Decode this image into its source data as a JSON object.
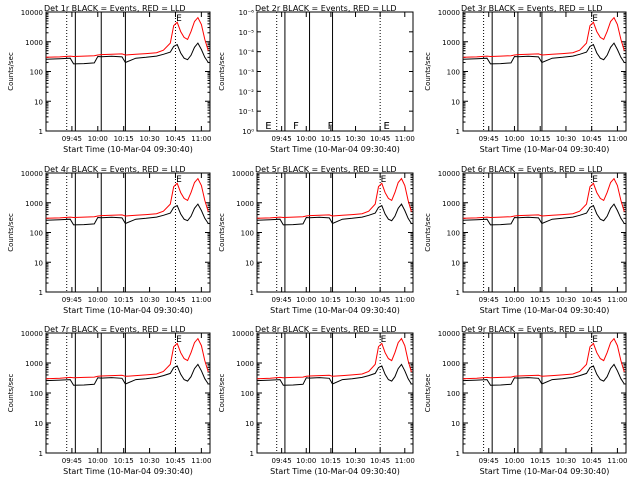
{
  "figure": {
    "xlabel": "Start Time (10-Mar-04 09:30:40)",
    "ylabel": "Counts/sec",
    "x_ticks": [
      "09:45",
      "10:00",
      "10:15",
      "10:30",
      "10:45",
      "11:00"
    ],
    "y_ticks": [
      "1",
      "10",
      "100",
      "1000",
      "10000"
    ],
    "y_ticks_det2": [
      "10⁰",
      "10⁻¹",
      "10⁻²",
      "10⁻³",
      "10⁻⁴",
      "10⁻⁵",
      "10⁻⁶"
    ],
    "flag_labels": {
      "f": "F",
      "e": "E"
    },
    "colors": {
      "events": "#000000",
      "lld": "#ff0000",
      "background": "#ffffff"
    }
  },
  "chart_data": [
    {
      "type": "line",
      "title": "Det 1r BLACK = Events, RED = LLD",
      "xlabel": "Start Time (10-Mar-04 09:30:40)",
      "ylabel": "Counts/sec",
      "y_scale": "log",
      "ylim": [
        1,
        10000
      ]
    },
    {
      "type": "line",
      "title": "Det 2r BLACK = Events, RED = LLD",
      "xlabel": "Start Time (10-Mar-04 09:30:40)",
      "ylabel": "Counts/sec",
      "y_scale": "log",
      "ylim": [
        1,
        1e-06
      ],
      "series": []
    },
    {
      "type": "line",
      "title": "Det 3r BLACK = Events, RED = LLD",
      "xlabel": "Start Time (10-Mar-04 09:30:40)",
      "ylabel": "Counts/sec",
      "y_scale": "log",
      "ylim": [
        1,
        10000
      ]
    },
    {
      "type": "line",
      "title": "Det 4r BLACK = Events, RED = LLD",
      "xlabel": "Start Time (10-Mar-04 09:30:40)",
      "ylabel": "Counts/sec",
      "y_scale": "log",
      "ylim": [
        1,
        10000
      ]
    },
    {
      "type": "line",
      "title": "Det 5r BLACK = Events, RED = LLD",
      "xlabel": "Start Time (10-Mar-04 09:30:40)",
      "ylabel": "Counts/sec",
      "y_scale": "log",
      "ylim": [
        1,
        10000
      ]
    },
    {
      "type": "line",
      "title": "Det 6r BLACK = Events, RED = LLD",
      "xlabel": "Start Time (10-Mar-04 09:30:40)",
      "ylabel": "Counts/sec",
      "y_scale": "log",
      "ylim": [
        1,
        10000
      ]
    },
    {
      "type": "line",
      "title": "Det 7r BLACK = Events, RED = LLD",
      "xlabel": "Start Time (10-Mar-04 09:30:40)",
      "ylabel": "Counts/sec",
      "y_scale": "log",
      "ylim": [
        1,
        10000
      ]
    },
    {
      "type": "line",
      "title": "Det 8r BLACK = Events, RED = LLD",
      "xlabel": "Start Time (10-Mar-04 09:30:40)",
      "ylabel": "Counts/sec",
      "y_scale": "log",
      "ylim": [
        1,
        10000
      ]
    },
    {
      "type": "line",
      "title": "Det 9r BLACK = Events, RED = LLD",
      "xlabel": "Start Time (10-Mar-04 09:30:40)",
      "ylabel": "Counts/sec",
      "y_scale": "log",
      "ylim": [
        1,
        10000
      ]
    }
  ],
  "shared_series": {
    "x_time": [
      "09:30",
      "09:38",
      "09:44",
      "09:46",
      "09:52",
      "09:58",
      "10:00",
      "10:02",
      "10:08",
      "10:14",
      "10:16",
      "10:22",
      "10:28",
      "10:34",
      "10:38",
      "10:42",
      "10:44",
      "10:46",
      "10:48",
      "10:50",
      "10:52",
      "10:54",
      "10:56",
      "10:58",
      "11:00",
      "11:02",
      "11:04"
    ],
    "events": [
      260,
      270,
      280,
      180,
      185,
      195,
      320,
      315,
      325,
      310,
      200,
      280,
      300,
      330,
      380,
      450,
      700,
      800,
      420,
      280,
      250,
      350,
      650,
      900,
      550,
      300,
      200
    ],
    "lld": [
      300,
      310,
      330,
      320,
      330,
      340,
      360,
      370,
      380,
      390,
      360,
      380,
      400,
      430,
      520,
      900,
      3500,
      4500,
      2200,
      1400,
      1200,
      2200,
      4800,
      6500,
      3800,
      1200,
      500
    ]
  },
  "markers": {
    "dotted_times": [
      "09:42",
      "10:45"
    ],
    "solid_times": [
      "09:47",
      "10:02",
      "10:16"
    ]
  }
}
